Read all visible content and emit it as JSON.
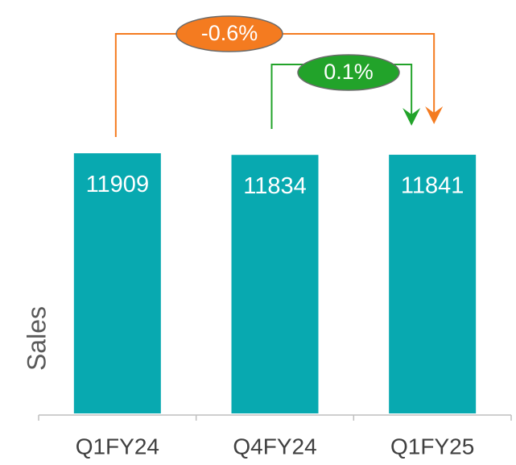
{
  "chart_data": {
    "type": "bar",
    "categories": [
      "Q1FY24",
      "Q4FY24",
      "Q1FY25"
    ],
    "values": [
      11909,
      11834,
      11841
    ],
    "color": "#08a9b0",
    "ylabel": "Sales",
    "ylim": [
      0,
      14000
    ],
    "annotations": [
      {
        "text": "-0.6%",
        "from": "Q1FY24",
        "to": "Q1FY25",
        "color": "#f47b20"
      },
      {
        "text": "0.1%",
        "from": "Q4FY24",
        "to": "Q1FY25",
        "color": "#22a32a"
      }
    ]
  }
}
